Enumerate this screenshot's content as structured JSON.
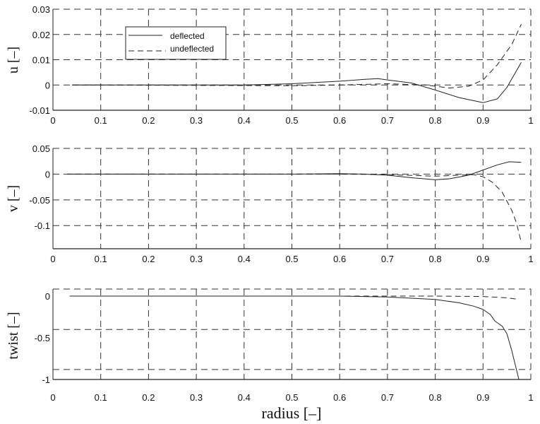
{
  "chart_data": [
    {
      "type": "line",
      "ylabel": "u  [–]",
      "xlabel": "",
      "xlim": [
        0,
        1
      ],
      "ylim": [
        -0.01,
        0.03
      ],
      "xticks": [
        "0",
        "0.1",
        "0.2",
        "0.3",
        "0.4",
        "0.5",
        "0.6",
        "0.7",
        "0.8",
        "0.9",
        "1"
      ],
      "yticks": [
        "0.03",
        "0.02",
        "0.01",
        "0",
        "-0.01"
      ],
      "ytick_values": [
        0.03,
        0.02,
        0.01,
        0,
        -0.01
      ],
      "ygrid_values": [
        0.02,
        0.01,
        0
      ],
      "grid": true,
      "legend": {
        "placement": "top-left",
        "entries": [
          "deflected",
          "undeflected"
        ]
      },
      "series": [
        {
          "name": "deflected",
          "style": "solid",
          "x": [
            0.04,
            0.3,
            0.4,
            0.5,
            0.6,
            0.65,
            0.68,
            0.7,
            0.75,
            0.8,
            0.85,
            0.9,
            0.93,
            0.95,
            0.98
          ],
          "y": [
            0,
            0,
            0,
            0.0005,
            0.0015,
            0.0022,
            0.0025,
            0.002,
            0.0008,
            -0.002,
            -0.005,
            -0.007,
            -0.0055,
            -0.001,
            0.009
          ]
        },
        {
          "name": "undeflected",
          "style": "dashed",
          "x": [
            0.04,
            0.4,
            0.5,
            0.6,
            0.7,
            0.78,
            0.83,
            0.87,
            0.9,
            0.93,
            0.96,
            0.98
          ],
          "y": [
            0,
            -0.0002,
            -0.0003,
            0,
            0.0005,
            0,
            -0.0012,
            -0.0005,
            0.002,
            0.008,
            0.016,
            0.024
          ]
        }
      ]
    },
    {
      "type": "line",
      "ylabel": "v  [–]",
      "xlabel": "",
      "xlim": [
        0,
        1
      ],
      "ylim": [
        -0.145,
        0.05
      ],
      "xticks": [
        "0",
        "0.1",
        "0.2",
        "0.3",
        "0.4",
        "0.5",
        "0.6",
        "0.7",
        "0.8",
        "0.9",
        "1"
      ],
      "yticks": [
        "0.05",
        "0",
        "-0.05",
        "-0.1"
      ],
      "ytick_values": [
        0.05,
        0,
        -0.05,
        -0.1
      ],
      "ygrid_values": [
        0.05,
        0,
        -0.05,
        -0.1
      ],
      "grid": true,
      "series": [
        {
          "name": "deflected",
          "style": "solid",
          "x": [
            0.03,
            0.5,
            0.6,
            0.65,
            0.7,
            0.75,
            0.8,
            0.83,
            0.87,
            0.9,
            0.93,
            0.955,
            0.98
          ],
          "y": [
            0,
            0,
            0.001,
            0,
            -0.002,
            -0.007,
            -0.011,
            -0.009,
            -0.002,
            0.008,
            0.018,
            0.024,
            0.023
          ]
        },
        {
          "name": "undeflected",
          "style": "dashed",
          "x": [
            0.03,
            0.6,
            0.7,
            0.8,
            0.88,
            0.9,
            0.92,
            0.94,
            0.96,
            0.97,
            0.98
          ],
          "y": [
            0,
            0,
            -0.001,
            -0.004,
            -0.001,
            -0.005,
            -0.016,
            -0.035,
            -0.07,
            -0.095,
            -0.133
          ]
        }
      ]
    },
    {
      "type": "line",
      "ylabel": "twist [–]",
      "xlabel": "radius [–]",
      "xlim": [
        0,
        1
      ],
      "ylim": [
        -1,
        0.085
      ],
      "xticks": [
        "0",
        "0.1",
        "0.2",
        "0.3",
        "0.4",
        "0.5",
        "0.6",
        "0.7",
        "0.8",
        "0.9",
        "1"
      ],
      "yticks": [
        "0",
        "-0.5",
        "-1"
      ],
      "ytick_values": [
        0,
        -0.5,
        -1
      ],
      "ygrid_values": [
        -0.4,
        -0.88
      ],
      "grid": true,
      "series": [
        {
          "name": "deflected",
          "style": "solid",
          "x": [
            0.035,
            0.6,
            0.7,
            0.8,
            0.85,
            0.88,
            0.9,
            0.915,
            0.925,
            0.94,
            0.95,
            0.96,
            0.975
          ],
          "y": [
            0,
            0,
            -0.01,
            -0.04,
            -0.08,
            -0.12,
            -0.16,
            -0.22,
            -0.3,
            -0.36,
            -0.45,
            -0.65,
            -1.0
          ]
        },
        {
          "name": "undeflected",
          "style": "dashed",
          "x": [
            0.035,
            0.8,
            0.9,
            0.95,
            0.975
          ],
          "y": [
            0,
            0,
            -0.005,
            -0.02,
            -0.04
          ]
        }
      ]
    }
  ]
}
